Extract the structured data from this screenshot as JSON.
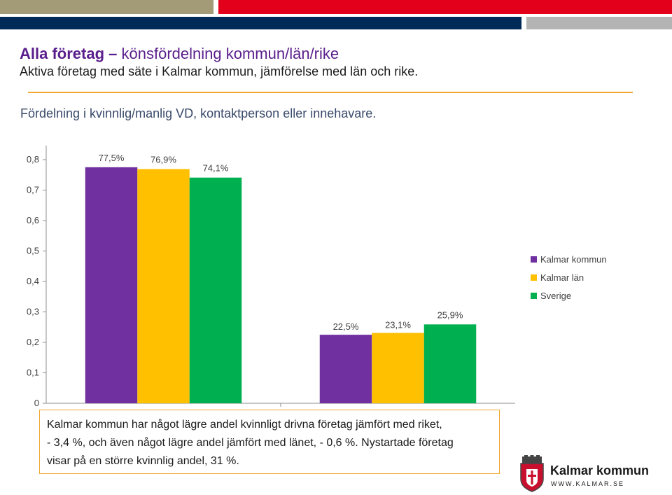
{
  "header": {
    "colors": {
      "olive": "#a39a78",
      "red": "#e3001b",
      "navy": "#002a57",
      "gray": "#b4b4b4"
    }
  },
  "title": {
    "main": "Alla företag",
    "separator": "–",
    "rest": "könsfördelning kommun/län/rike",
    "subtitle": "Aktiva företag med säte i Kalmar kommun, jämförelse med län och rike."
  },
  "description": "Fördelning i kvinnlig/manlig VD, kontaktperson eller innehavare.",
  "chart_data": {
    "type": "bar",
    "categories": [
      "",
      ""
    ],
    "series": [
      {
        "name": "Kalmar kommun",
        "color": "#7030a0",
        "values": [
          0.775,
          0.225
        ],
        "labels": [
          "77,5%",
          "22,5%"
        ]
      },
      {
        "name": "Kalmar län",
        "color": "#ffc000",
        "values": [
          0.769,
          0.231
        ],
        "labels": [
          "76,9%",
          "23,1%"
        ]
      },
      {
        "name": "Sverige",
        "color": "#00b050",
        "values": [
          0.741,
          0.259
        ],
        "labels": [
          "74,1%",
          "25,9%"
        ]
      }
    ],
    "ylim": [
      0,
      0.8
    ],
    "yticks": [
      "0",
      "0,1",
      "0,2",
      "0,3",
      "0,4",
      "0,5",
      "0,6",
      "0,7",
      "0,8"
    ],
    "grid": false,
    "legend": "right"
  },
  "callout": {
    "line1": "Kalmar kommun har något lägre andel kvinnligt drivna företag jämfört med riket,",
    "line2": "- 3,4 %, och även något lägre andel jämfört med länet, - 0,6 %. Nystartade företag",
    "line3": "visar på en större kvinnlig andel, 31 %."
  },
  "logo": {
    "name": "Kalmar kommun",
    "url": "WWW.KALMAR.SE",
    "icon": "kalmar-coat-of-arms-icon"
  }
}
